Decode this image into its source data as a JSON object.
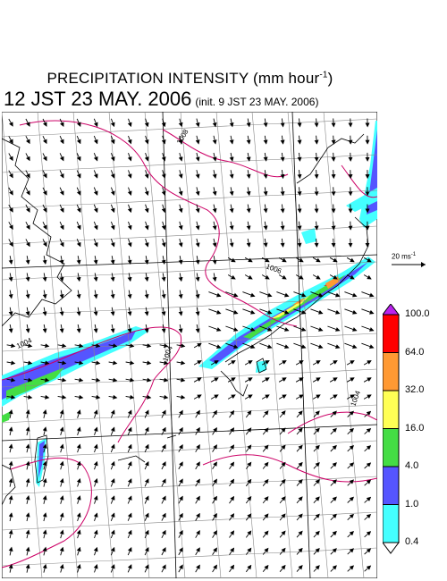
{
  "title": {
    "main": "PRECIPITATION INTENSITY (mm hour",
    "unit_exp": "-1",
    "close": ")"
  },
  "subtitle": {
    "time": "12 JST 23 MAY. 2006",
    "init": "(init. 9 JST 23 MAY. 2006)"
  },
  "wind_scale": {
    "value": "20 ms",
    "exp": "-1"
  },
  "isobar_labels": [
    "1008",
    "1006",
    "1004",
    "1004",
    "1004"
  ],
  "legend": {
    "levels": [
      "100.0",
      "64.0",
      "32.0",
      "16.0",
      "4.0",
      "1.0",
      "0.4"
    ],
    "colors": [
      "#ff0000",
      "#ff9933",
      "#ffff55",
      "#44dd44",
      "#5555ff",
      "#44ffff"
    ],
    "top_color": "#bb22ee",
    "bottom_color": "#ffffff"
  },
  "colors": {
    "isobar": "#cc0066",
    "coast": "#000000",
    "grid": "#888888",
    "arrow": "#000000"
  }
}
